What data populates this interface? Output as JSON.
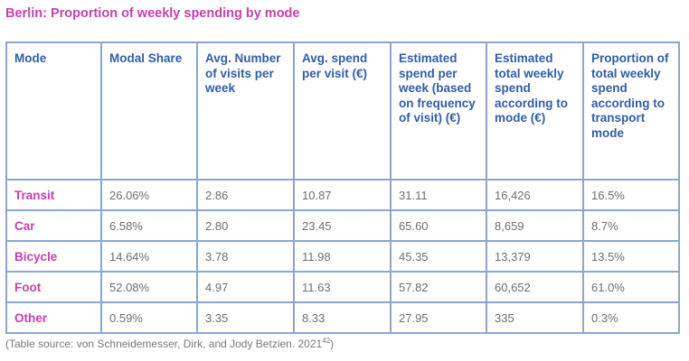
{
  "title": "Berlin: Proportion of weekly spending by mode",
  "table": {
    "headers": [
      "Mode",
      "Modal Share",
      "Avg. Number of visits per week",
      "Avg. spend per visit (€)",
      "Estimated spend per week (based on frequency of visit) (€)",
      "Estimated total weekly spend according to mode (€)",
      "Proportion of total weekly spend according to transport mode"
    ],
    "rows": [
      [
        "Transit",
        "26.06%",
        "2.86",
        "10.87",
        "31.11",
        "16,426",
        "16.5%"
      ],
      [
        "Car",
        "6.58%",
        "2.80",
        "23.45",
        "65.60",
        "8,659",
        "8.7%"
      ],
      [
        "Bicycle",
        "14.64%",
        "3.78",
        "11.98",
        "45.35",
        "13,379",
        "13.5%"
      ],
      [
        "Foot",
        "52.08%",
        "4.97",
        "11.63",
        "57.82",
        "60,652",
        "61.0%"
      ],
      [
        "Other",
        "0.59%",
        "3.35",
        "8.33",
        "27.95",
        "335",
        "0.3%"
      ]
    ]
  },
  "source": {
    "text": "(Table source: von Schneidemesser, Dirk, and Jody Betzien. 2021",
    "ref": "42",
    "close": ")"
  },
  "colors": {
    "accent": "#c83fae",
    "header_text": "#2f5ea9",
    "border": "#8ba7cf",
    "cell_text": "#6f6f6f"
  }
}
